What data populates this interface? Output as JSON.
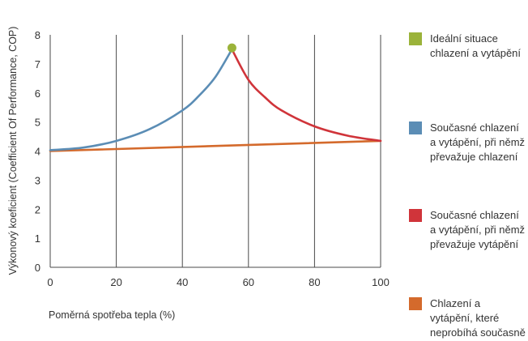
{
  "chart_data": {
    "type": "line",
    "title": "",
    "xlabel": "Poměrná spotřeba tepla (%)",
    "ylabel": "Výkonový koeficient (Coefficient Of Performance, COP)",
    "xlim": [
      0,
      100
    ],
    "ylim": [
      0,
      8
    ],
    "xticks": [
      0,
      20,
      40,
      60,
      80,
      100
    ],
    "yticks": [
      0,
      1,
      2,
      3,
      4,
      5,
      6,
      7,
      8
    ],
    "grid": "vertical",
    "legend_position": "right",
    "series": [
      {
        "name": "Ideální situace chlazení a vytápění",
        "color": "#9bb33a",
        "kind": "point",
        "x": [
          55
        ],
        "y": [
          7.55
        ]
      },
      {
        "name": "Současné chlazení a vytápění, při němž převažuje chlazení",
        "color": "#5b8db5",
        "kind": "line",
        "x": [
          0,
          10,
          20,
          30,
          40,
          45,
          50,
          55
        ],
        "y": [
          4.03,
          4.12,
          4.35,
          4.75,
          5.4,
          5.9,
          6.55,
          7.5
        ]
      },
      {
        "name": "Současné chlazení a vytápění, při němž převažuje vytápění",
        "color": "#d0343a",
        "kind": "line",
        "x": [
          55,
          60,
          65,
          70,
          80,
          90,
          100
        ],
        "y": [
          7.5,
          6.45,
          5.85,
          5.4,
          4.85,
          4.53,
          4.35
        ]
      },
      {
        "name": "Chlazení a vytápění, které neprobíhá současně",
        "color": "#d46a2c",
        "kind": "line",
        "x": [
          0,
          100
        ],
        "y": [
          4.0,
          4.35
        ]
      }
    ]
  }
}
